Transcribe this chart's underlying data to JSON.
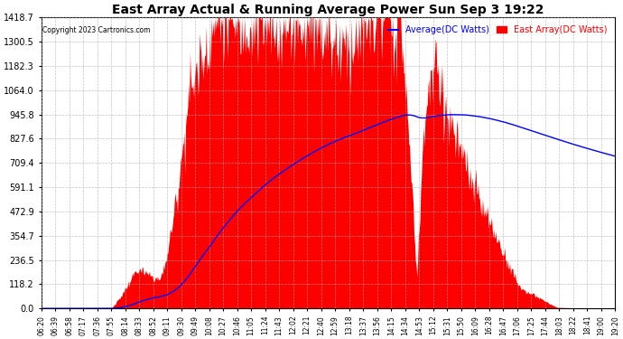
{
  "title": "East Array Actual & Running Average Power Sun Sep 3 19:22",
  "copyright": "Copyright 2023 Cartronics.com",
  "legend_avg": "Average(DC Watts)",
  "legend_east": "East Array(DC Watts)",
  "yticks": [
    0.0,
    118.2,
    236.5,
    354.7,
    472.9,
    591.1,
    709.4,
    827.6,
    945.8,
    1064.0,
    1182.3,
    1300.5,
    1418.7
  ],
  "ymax": 1418.7,
  "ymin": 0.0,
  "fill_color": "#ff0000",
  "line_color": "#0000ff",
  "background_color": "#ffffff",
  "grid_color": "#aaaaaa",
  "title_color": "#000000",
  "copyright_color": "#000000",
  "avg_legend_color": "#0000ff",
  "east_legend_color": "#ff0000",
  "xtick_labels": [
    "06:20",
    "06:39",
    "06:58",
    "07:17",
    "07:36",
    "07:55",
    "08:14",
    "08:33",
    "08:52",
    "09:11",
    "09:30",
    "09:49",
    "10:08",
    "10:27",
    "10:46",
    "11:05",
    "11:24",
    "11:43",
    "12:02",
    "12:21",
    "12:40",
    "12:59",
    "13:18",
    "13:37",
    "13:56",
    "14:15",
    "14:34",
    "14:53",
    "15:12",
    "15:31",
    "15:50",
    "16:09",
    "16:28",
    "16:47",
    "17:06",
    "17:25",
    "17:44",
    "18:03",
    "18:22",
    "18:41",
    "19:00",
    "19:20"
  ],
  "n_points": 780
}
